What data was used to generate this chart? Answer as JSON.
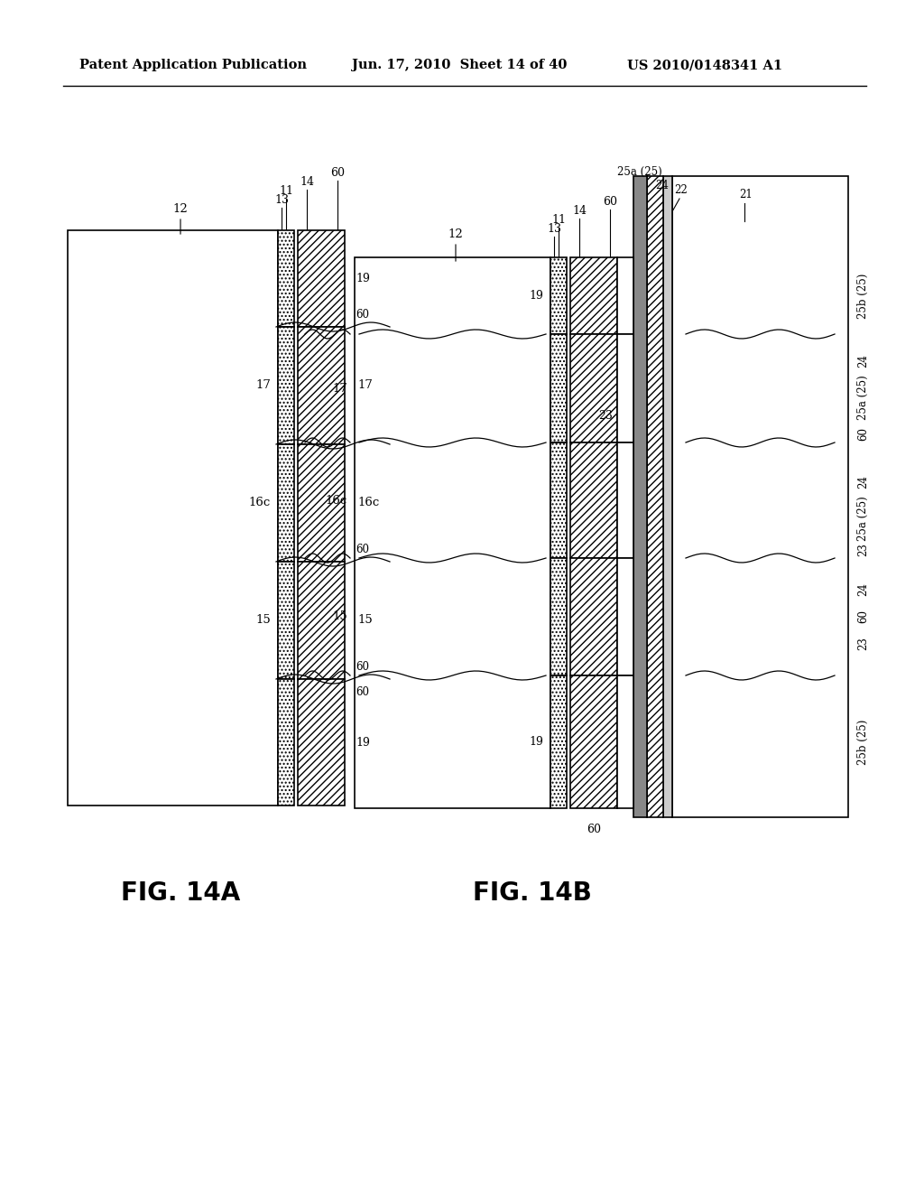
{
  "bg_color": "#ffffff",
  "header_left": "Patent Application Publication",
  "header_mid": "Jun. 17, 2010  Sheet 14 of 40",
  "header_right": "US 2010/0148341 A1",
  "fig_label_A": "FIG. 14A",
  "fig_label_B": "FIG. 14B"
}
